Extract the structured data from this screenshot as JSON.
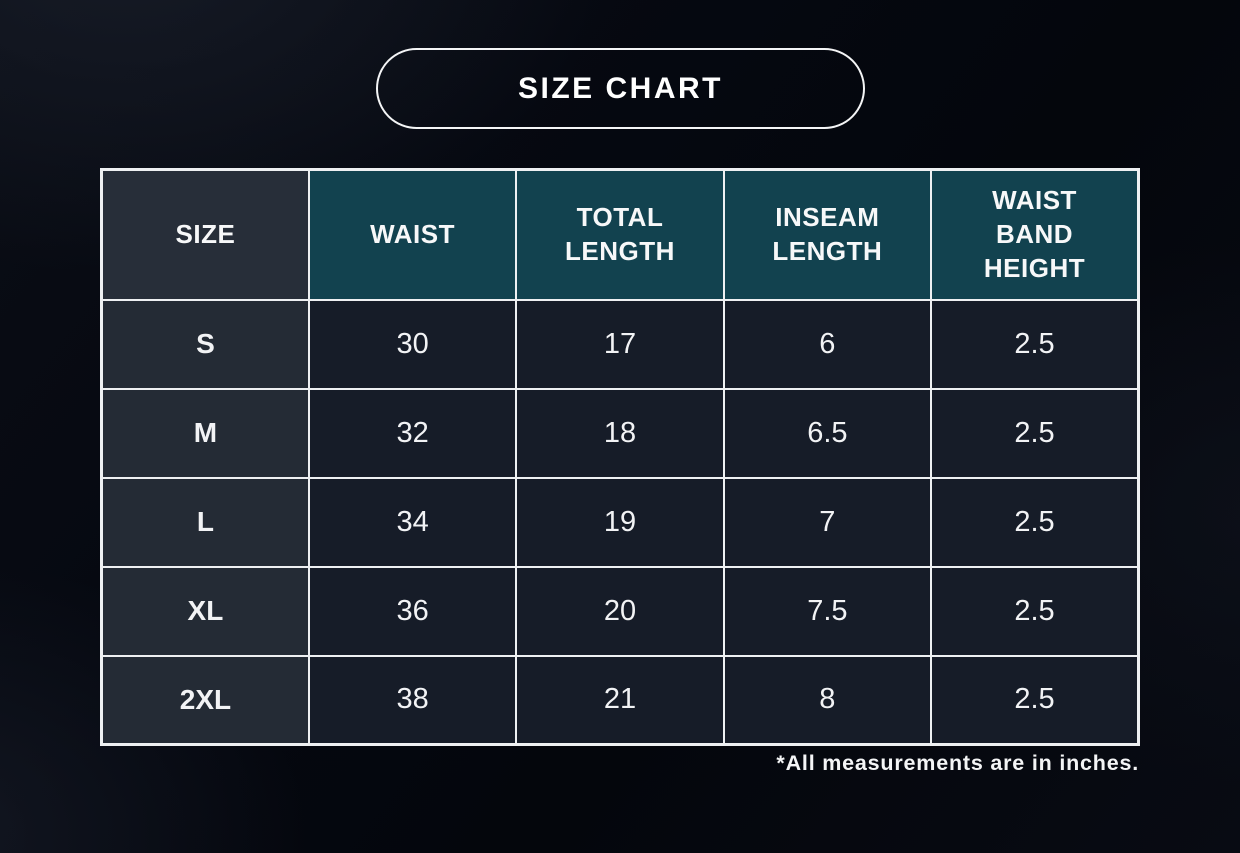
{
  "title": "SIZE CHART",
  "chart_data": {
    "type": "table",
    "title": "SIZE CHART",
    "columns": [
      "SIZE",
      "WAIST",
      "TOTAL LENGTH",
      "INSEAM LENGTH",
      "WAIST BAND HEIGHT"
    ],
    "rows": [
      [
        "S",
        "30",
        "17",
        "6",
        "2.5"
      ],
      [
        "M",
        "32",
        "18",
        "6.5",
        "2.5"
      ],
      [
        "L",
        "34",
        "19",
        "7",
        "2.5"
      ],
      [
        "XL",
        "36",
        "20",
        "7.5",
        "2.5"
      ],
      [
        "2XL",
        "38",
        "21",
        "8",
        "2.5"
      ]
    ],
    "footnote": "*All measurements are in inches."
  },
  "colors": {
    "background": "#05070d",
    "header_teal": "#12424f",
    "header_slate": "#272e39",
    "row_label_slate": "#242b35",
    "data_cell_navy": "#161c28",
    "grid_border": "#eef0f2",
    "text": "#f5f5f5"
  }
}
